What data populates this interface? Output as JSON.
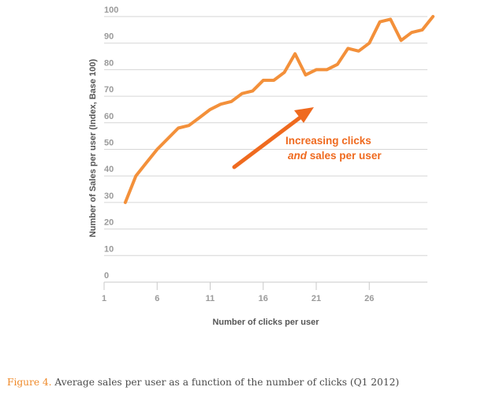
{
  "chart_data": {
    "type": "line",
    "xlabel": "Number of clicks per user",
    "ylabel": "Number of Sales per user (Index, Base 100)",
    "xlim": [
      1,
      31
    ],
    "ylim": [
      0,
      100
    ],
    "x_ticks": [
      1,
      6,
      11,
      16,
      21,
      26
    ],
    "y_ticks": [
      0,
      10,
      20,
      30,
      40,
      50,
      60,
      70,
      80,
      90,
      100
    ],
    "grid": "horizontal",
    "series": [
      {
        "color": "#f3903a",
        "x": [
          3,
          4,
          5,
          6,
          7,
          8,
          9,
          10,
          11,
          12,
          13,
          14,
          15,
          16,
          17,
          18,
          19,
          20,
          21,
          22,
          23,
          24,
          25,
          26,
          27,
          28,
          29,
          30,
          31
        ],
        "values": [
          30,
          40,
          45,
          50,
          54,
          58,
          59,
          62,
          65,
          67,
          68,
          71,
          72,
          76,
          76,
          79,
          86,
          78,
          80,
          80,
          82,
          88,
          87,
          90,
          98,
          99,
          91,
          94,
          95
        ]
      }
    ],
    "end_value": {
      "x": 32,
      "value": 100
    },
    "annotation": {
      "line1": "Increasing clicks",
      "line2_em": "and",
      "line2_rest": " sales per user",
      "arrow_color": "#ef6a1f"
    }
  },
  "caption": {
    "figure_label": "Figure 4.",
    "text": " Average sales per user as a function of the number of clicks (Q1 2012)"
  }
}
